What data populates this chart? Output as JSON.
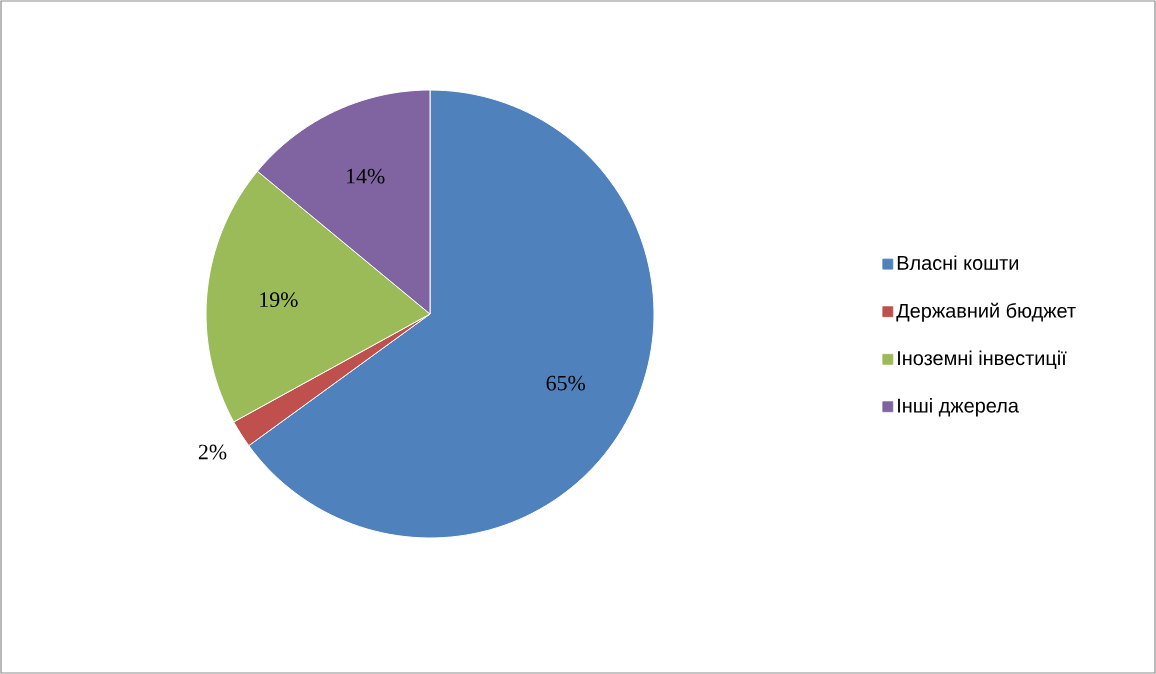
{
  "chart_data": {
    "type": "pie",
    "categories": [
      "Власні кошти",
      "Державний бюджет",
      "Іноземні інвестиції",
      "Інші джерела"
    ],
    "values": [
      65,
      2,
      19,
      14
    ],
    "colors": [
      "#4f81bd",
      "#c0504d",
      "#9bbb59",
      "#8064a2"
    ],
    "value_labels": [
      "65%",
      "2%",
      "19%",
      "14%"
    ],
    "legend": "right"
  }
}
